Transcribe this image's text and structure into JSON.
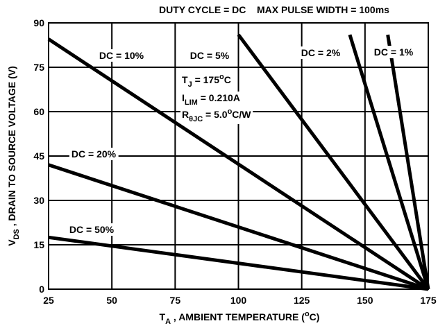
{
  "chart_data": {
    "type": "line",
    "title": "DUTY CYCLE = DC    MAX PULSE WIDTH = 100ms",
    "x_label": [
      {
        "text": "T"
      },
      {
        "text": "A",
        "style": "sub"
      },
      {
        "text": " , AMBIENT TEMPERATURE ("
      },
      {
        "text": "o",
        "style": "sup"
      },
      {
        "text": "C)"
      }
    ],
    "y_label": [
      {
        "text": "V"
      },
      {
        "text": "DS",
        "style": "sub"
      },
      {
        "text": " , DRAIN TO SOURCE VOLTAGE (V)"
      }
    ],
    "annotations": [
      [
        {
          "text": "T"
        },
        {
          "text": "J",
          "style": "sub"
        },
        {
          "text": " = 175"
        },
        {
          "text": "o",
          "style": "sup"
        },
        {
          "text": "C"
        }
      ],
      [
        {
          "text": "I"
        },
        {
          "text": "LIM",
          "style": "sub"
        },
        {
          "text": " = 0.210A"
        }
      ],
      [
        {
          "text": "R"
        },
        {
          "text": "θJC",
          "style": "sub"
        },
        {
          "text": " = 5.0"
        },
        {
          "text": "o",
          "style": "sup"
        },
        {
          "text": "C/W"
        }
      ]
    ],
    "xlim": [
      25,
      175
    ],
    "ylim": [
      0,
      90
    ],
    "xticks": [
      25,
      50,
      75,
      100,
      125,
      150,
      175
    ],
    "yticks": [
      0,
      15,
      30,
      45,
      60,
      75,
      90
    ],
    "grid": true,
    "series": [
      {
        "name": "DC = 10%",
        "color": "#000000",
        "x": [
          25,
          175
        ],
        "values": [
          84.5,
          0
        ]
      },
      {
        "name": "DC = 5%",
        "color": "#000000",
        "x": [
          100,
          175
        ],
        "values": [
          86,
          0
        ]
      },
      {
        "name": "DC = 2%",
        "color": "#000000",
        "x": [
          144,
          175
        ],
        "values": [
          86,
          0
        ]
      },
      {
        "name": "DC = 1%",
        "color": "#000000",
        "x": [
          159,
          175
        ],
        "values": [
          86,
          0
        ]
      },
      {
        "name": "DC = 20%",
        "color": "#000000",
        "x": [
          25,
          175
        ],
        "values": [
          42,
          0
        ]
      },
      {
        "name": "DC = 50%",
        "color": "#000000",
        "x": [
          25,
          175
        ],
        "values": [
          17.5,
          0
        ]
      }
    ]
  }
}
